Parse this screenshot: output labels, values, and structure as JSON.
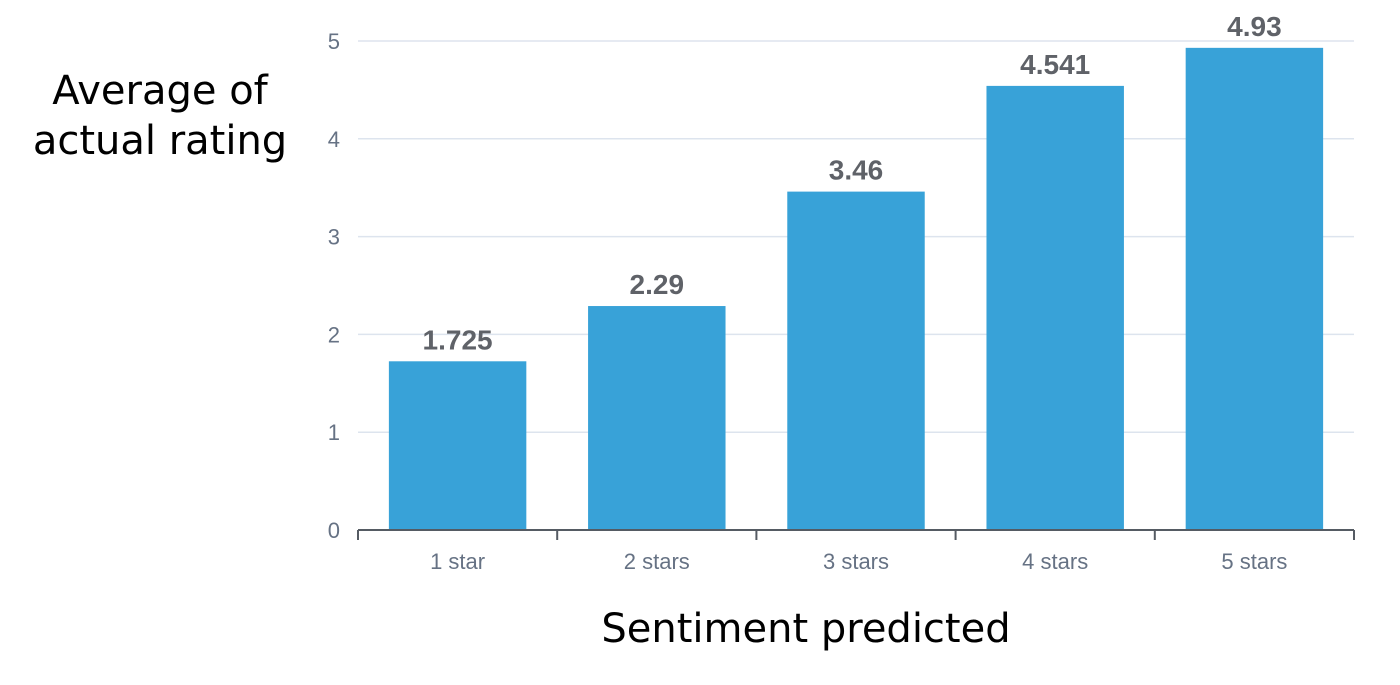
{
  "chart_data": {
    "type": "bar",
    "categories": [
      "1 star",
      "2 stars",
      "3 stars",
      "4 stars",
      "5 stars"
    ],
    "values": [
      1.725,
      2.29,
      3.46,
      4.541,
      4.93
    ],
    "value_labels": [
      "1.725",
      "2.29",
      "3.46",
      "4.541",
      "4.93"
    ],
    "title": "",
    "xlabel": "Sentiment predicted",
    "ylabel": "Average of actual rating",
    "ylim": [
      0,
      5
    ],
    "yticks": [
      0,
      1,
      2,
      3,
      4,
      5
    ],
    "grid": true,
    "legend": "none",
    "colors": {
      "bar": "#38a2d8",
      "value_label": "#5f6268",
      "tick_label": "#667284",
      "grid": "#dde4ee",
      "axis": "#555b63"
    }
  }
}
